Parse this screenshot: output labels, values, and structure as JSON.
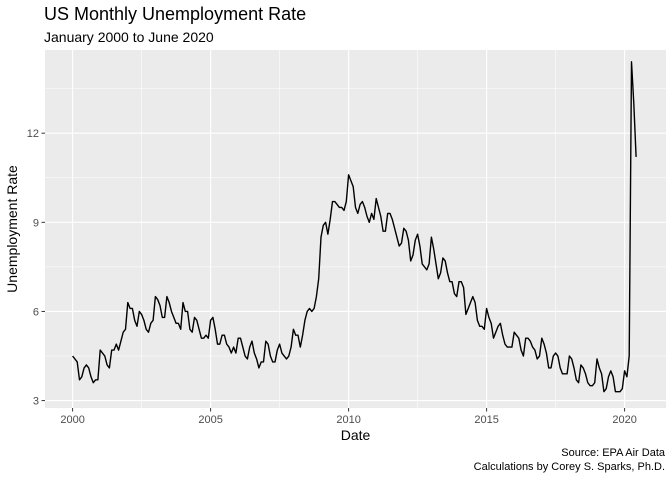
{
  "chart_data": {
    "type": "line",
    "title": "US Monthly Unemployment Rate",
    "subtitle": "January 2000 to June 2020",
    "xlabel": "Date",
    "ylabel": "Unemployment Rate",
    "caption": [
      "Source: EPA Air Data",
      "Calculations by Corey S. Sparks, Ph.D."
    ],
    "x_start": "2000-01",
    "x_end": "2020-06",
    "xlim": [
      1999.0,
      2021.5
    ],
    "ylim": [
      2.75,
      14.8
    ],
    "x_ticks": [
      2000,
      2005,
      2010,
      2015,
      2020
    ],
    "x_tick_labels": [
      "2000",
      "2005",
      "2010",
      "2015",
      "2020"
    ],
    "y_ticks": [
      3,
      6,
      9,
      12
    ],
    "y_tick_labels": [
      "3",
      "6",
      "9",
      "12"
    ],
    "grid": true,
    "panel_background": "#ebebeb",
    "grid_color": "#ffffff",
    "line_color": "#000000",
    "series": [
      {
        "values": [
          4.5,
          4.4,
          4.3,
          3.7,
          3.8,
          4.1,
          4.2,
          4.1,
          3.8,
          3.6,
          3.7,
          3.7,
          4.7,
          4.6,
          4.5,
          4.2,
          4.1,
          4.7,
          4.7,
          4.9,
          4.7,
          5.0,
          5.3,
          5.4,
          6.3,
          6.1,
          6.1,
          5.7,
          5.5,
          6.0,
          5.9,
          5.7,
          5.4,
          5.3,
          5.6,
          5.7,
          6.5,
          6.4,
          6.2,
          5.8,
          5.8,
          6.5,
          6.3,
          6.0,
          5.8,
          5.6,
          5.6,
          5.4,
          6.3,
          6.0,
          6.0,
          5.4,
          5.3,
          5.8,
          5.7,
          5.4,
          5.1,
          5.1,
          5.2,
          5.1,
          5.7,
          5.8,
          5.4,
          4.9,
          4.9,
          5.2,
          5.2,
          4.9,
          4.8,
          4.6,
          4.8,
          4.6,
          5.1,
          5.1,
          4.8,
          4.5,
          4.4,
          4.8,
          5.0,
          4.6,
          4.4,
          4.1,
          4.3,
          4.3,
          5.0,
          4.9,
          4.5,
          4.3,
          4.3,
          4.7,
          4.9,
          4.6,
          4.5,
          4.4,
          4.5,
          4.8,
          5.4,
          5.2,
          5.2,
          4.8,
          5.2,
          5.7,
          6.0,
          6.1,
          6.0,
          6.1,
          6.5,
          7.1,
          8.5,
          8.9,
          9.0,
          8.6,
          9.1,
          9.7,
          9.7,
          9.6,
          9.5,
          9.5,
          9.4,
          9.7,
          10.6,
          10.4,
          10.2,
          9.5,
          9.3,
          9.6,
          9.7,
          9.5,
          9.2,
          9.0,
          9.3,
          9.1,
          9.8,
          9.5,
          9.2,
          8.7,
          8.7,
          9.3,
          9.3,
          9.1,
          8.8,
          8.5,
          8.2,
          8.3,
          8.8,
          8.7,
          8.4,
          7.7,
          7.9,
          8.4,
          8.6,
          8.2,
          7.6,
          7.5,
          7.4,
          7.6,
          8.5,
          8.1,
          7.6,
          7.1,
          7.3,
          7.8,
          7.7,
          7.3,
          7.0,
          7.0,
          6.6,
          6.5,
          7.0,
          7.0,
          6.8,
          5.9,
          6.1,
          6.3,
          6.5,
          6.3,
          5.7,
          5.5,
          5.5,
          5.4,
          6.1,
          5.8,
          5.6,
          5.1,
          5.3,
          5.5,
          5.6,
          5.2,
          4.9,
          4.8,
          4.8,
          4.8,
          5.3,
          5.2,
          5.1,
          4.7,
          4.5,
          5.1,
          5.1,
          5.0,
          4.8,
          4.7,
          4.4,
          4.5,
          5.1,
          4.9,
          4.6,
          4.1,
          4.1,
          4.5,
          4.6,
          4.5,
          4.1,
          3.9,
          3.9,
          3.9,
          4.5,
          4.4,
          4.1,
          3.7,
          3.6,
          4.2,
          4.1,
          3.9,
          3.6,
          3.5,
          3.5,
          3.6,
          4.4,
          4.1,
          3.9,
          3.3,
          3.4,
          3.8,
          4.0,
          3.8,
          3.3,
          3.3,
          3.3,
          3.4,
          4.0,
          3.8,
          4.5,
          14.4,
          13.0,
          11.2
        ]
      }
    ]
  }
}
